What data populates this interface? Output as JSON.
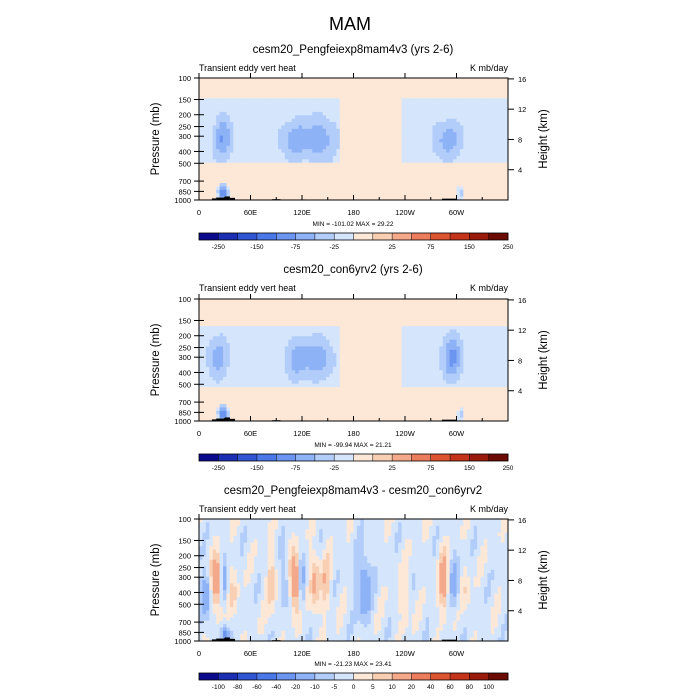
{
  "page_title": "MAM",
  "chart_data": [
    {
      "type": "heatmap",
      "title": "cesm20_Pengfeiexp8mam4v3 (yrs 2-6)",
      "left_label": "Transient eddy vert heat",
      "right_label": "K mb/day",
      "ylabel": "Pressure (mb)",
      "ylabel_right": "Height (km)",
      "x_ticks": [
        "0",
        "60E",
        "120E",
        "180",
        "120W",
        "60W"
      ],
      "y_ticks": [
        "100",
        "150",
        "200",
        "250",
        "300",
        "400",
        "500",
        "700",
        "850",
        "1000"
      ],
      "y_ticks_right": [
        "16",
        "12",
        "8",
        "4"
      ],
      "stats": "MIN = -101.02  MAX =  29.22",
      "levels": [
        -250,
        -200,
        -150,
        -100,
        -75,
        -50,
        -25,
        -10,
        10,
        25,
        50,
        75,
        100,
        150,
        200,
        250
      ],
      "level_labels": [
        "-250",
        "-150",
        "-75",
        "-25",
        "25",
        "75",
        "150",
        "250"
      ],
      "colors": [
        "#0a0a8c",
        "#1a2fb4",
        "#2f55d4",
        "#4a78e8",
        "#6b95f0",
        "#8eb2f6",
        "#b2cdfa",
        "#d5e6fc",
        "#fde8d8",
        "#f9cfb4",
        "#f4a98a",
        "#ec7d5c",
        "#dd5431",
        "#c3341a",
        "#9a1b0b",
        "#6c0a04"
      ],
      "background_value": 5,
      "features": [
        {
          "lon": 28,
          "p": 310,
          "dlon": 7,
          "dlogp": 0.11,
          "amp": -60
        },
        {
          "lon": 112,
          "p": 320,
          "dlon": 11,
          "dlogp": 0.1,
          "amp": -50
        },
        {
          "lon": 140,
          "p": 315,
          "dlon": 12,
          "dlogp": 0.11,
          "amp": -55
        },
        {
          "lon": 290,
          "p": 320,
          "dlon": 11,
          "dlogp": 0.1,
          "amp": -50
        },
        {
          "lon": 28,
          "p": 870,
          "dlon": 4,
          "dlogp": 0.05,
          "amp": -101
        },
        {
          "lon": 305,
          "p": 880,
          "dlon": 3,
          "dlogp": 0.04,
          "amp": -45
        }
      ],
      "band": {
        "top": 150,
        "bottom": 500,
        "amp": -20
      },
      "gaps": [
        {
          "lon": 200,
          "width": 35
        }
      ],
      "noise_amp": 4
    },
    {
      "type": "heatmap",
      "title": "cesm20_con6yrv2 (yrs 2-6)",
      "left_label": "Transient eddy vert heat",
      "right_label": "K mb/day",
      "ylabel": "Pressure (mb)",
      "ylabel_right": "Height (km)",
      "x_ticks": [
        "0",
        "60E",
        "120E",
        "180",
        "120W",
        "60W"
      ],
      "y_ticks": [
        "100",
        "150",
        "200",
        "250",
        "300",
        "400",
        "500",
        "700",
        "850",
        "1000"
      ],
      "y_ticks_right": [
        "16",
        "12",
        "8",
        "4"
      ],
      "stats": "MIN = -99.94  MAX =  21.21",
      "levels": [
        -250,
        -200,
        -150,
        -100,
        -75,
        -50,
        -25,
        -10,
        10,
        25,
        50,
        75,
        100,
        150,
        200,
        250
      ],
      "level_labels": [
        "-250",
        "-150",
        "-75",
        "-25",
        "25",
        "75",
        "150",
        "250"
      ],
      "colors": [
        "#0a0a8c",
        "#1a2fb4",
        "#2f55d4",
        "#4a78e8",
        "#6b95f0",
        "#8eb2f6",
        "#b2cdfa",
        "#d5e6fc",
        "#fde8d8",
        "#f9cfb4",
        "#f4a98a",
        "#ec7d5c",
        "#dd5431",
        "#c3341a",
        "#9a1b0b",
        "#6c0a04"
      ],
      "background_value": 5,
      "features": [
        {
          "lon": 22,
          "p": 300,
          "dlon": 8,
          "dlogp": 0.11,
          "amp": -55
        },
        {
          "lon": 115,
          "p": 310,
          "dlon": 10,
          "dlogp": 0.11,
          "amp": -55
        },
        {
          "lon": 140,
          "p": 305,
          "dlon": 10,
          "dlogp": 0.11,
          "amp": -55
        },
        {
          "lon": 295,
          "p": 300,
          "dlon": 8,
          "dlogp": 0.12,
          "amp": -70
        },
        {
          "lon": 28,
          "p": 870,
          "dlon": 4,
          "dlogp": 0.05,
          "amp": -99.9
        },
        {
          "lon": 305,
          "p": 880,
          "dlon": 3,
          "dlogp": 0.04,
          "amp": -40
        }
      ],
      "band": {
        "top": 170,
        "bottom": 520,
        "amp": -18
      },
      "gaps": [
        {
          "lon": 200,
          "width": 35
        }
      ],
      "noise_amp": 3
    },
    {
      "type": "heatmap",
      "title": "cesm20_Pengfeiexp8mam4v3 - cesm20_con6yrv2",
      "left_label": "Transient eddy vert heat",
      "right_label": "K mb/day",
      "ylabel": "Pressure (mb)",
      "ylabel_right": "Height (km)",
      "x_ticks": [
        "0",
        "60E",
        "120E",
        "180",
        "120W",
        "60W"
      ],
      "y_ticks": [
        "100",
        "150",
        "200",
        "250",
        "300",
        "400",
        "500",
        "700",
        "850",
        "1000"
      ],
      "y_ticks_right": [
        "16",
        "12",
        "8",
        "4"
      ],
      "stats": "MIN = -21.23  MAX =  23.41",
      "levels": [
        -100,
        -80,
        -60,
        -40,
        -20,
        -10,
        -5,
        0,
        5,
        10,
        20,
        40,
        60,
        80,
        100
      ],
      "level_labels": [
        "-100",
        "-80",
        "-60",
        "-40",
        "-20",
        "-10",
        "-5",
        "0",
        "5",
        "10",
        "20",
        "40",
        "60",
        "80",
        "100"
      ],
      "colors": [
        "#0a0a8c",
        "#1a2fb4",
        "#2f55d4",
        "#4a78e8",
        "#6b95f0",
        "#8eb2f6",
        "#b2cdfa",
        "#d5e6fc",
        "#fde8d8",
        "#f9cfb4",
        "#f4a98a",
        "#ec7d5c",
        "#dd5431",
        "#c3341a",
        "#9a1b0b",
        "#6c0a04"
      ],
      "background_value": -2,
      "features": [
        {
          "lon": 8,
          "p": 420,
          "dlon": 4,
          "dlogp": 0.12,
          "amp": -18
        },
        {
          "lon": 20,
          "p": 330,
          "dlon": 4,
          "dlogp": 0.15,
          "amp": 22
        },
        {
          "lon": 30,
          "p": 330,
          "dlon": 3,
          "dlogp": 0.15,
          "amp": -10
        },
        {
          "lon": 40,
          "p": 420,
          "dlon": 4,
          "dlogp": 0.15,
          "amp": 8
        },
        {
          "lon": 85,
          "p": 330,
          "dlon": 4,
          "dlogp": 0.18,
          "amp": 10
        },
        {
          "lon": 100,
          "p": 340,
          "dlon": 4,
          "dlogp": 0.15,
          "amp": -8
        },
        {
          "lon": 112,
          "p": 330,
          "dlon": 4,
          "dlogp": 0.17,
          "amp": 23
        },
        {
          "lon": 120,
          "p": 330,
          "dlon": 3,
          "dlogp": 0.17,
          "amp": -12
        },
        {
          "lon": 135,
          "p": 330,
          "dlon": 4,
          "dlogp": 0.17,
          "amp": 14
        },
        {
          "lon": 148,
          "p": 330,
          "dlon": 4,
          "dlogp": 0.17,
          "amp": 10
        },
        {
          "lon": 192,
          "p": 360,
          "dlon": 6,
          "dlogp": 0.2,
          "amp": -15
        },
        {
          "lon": 240,
          "p": 460,
          "dlon": 4,
          "dlogp": 0.15,
          "amp": 8
        },
        {
          "lon": 285,
          "p": 330,
          "dlon": 4,
          "dlogp": 0.17,
          "amp": 18
        },
        {
          "lon": 298,
          "p": 340,
          "dlon": 4,
          "dlogp": 0.15,
          "amp": -12
        },
        {
          "lon": 310,
          "p": 400,
          "dlon": 4,
          "dlogp": 0.15,
          "amp": 6
        },
        {
          "lon": 30,
          "p": 870,
          "dlon": 3,
          "dlogp": 0.05,
          "amp": -21
        }
      ],
      "band": {
        "top": 150,
        "bottom": 900,
        "amp": 0
      },
      "gaps": [],
      "noise_amp": 4
    }
  ]
}
